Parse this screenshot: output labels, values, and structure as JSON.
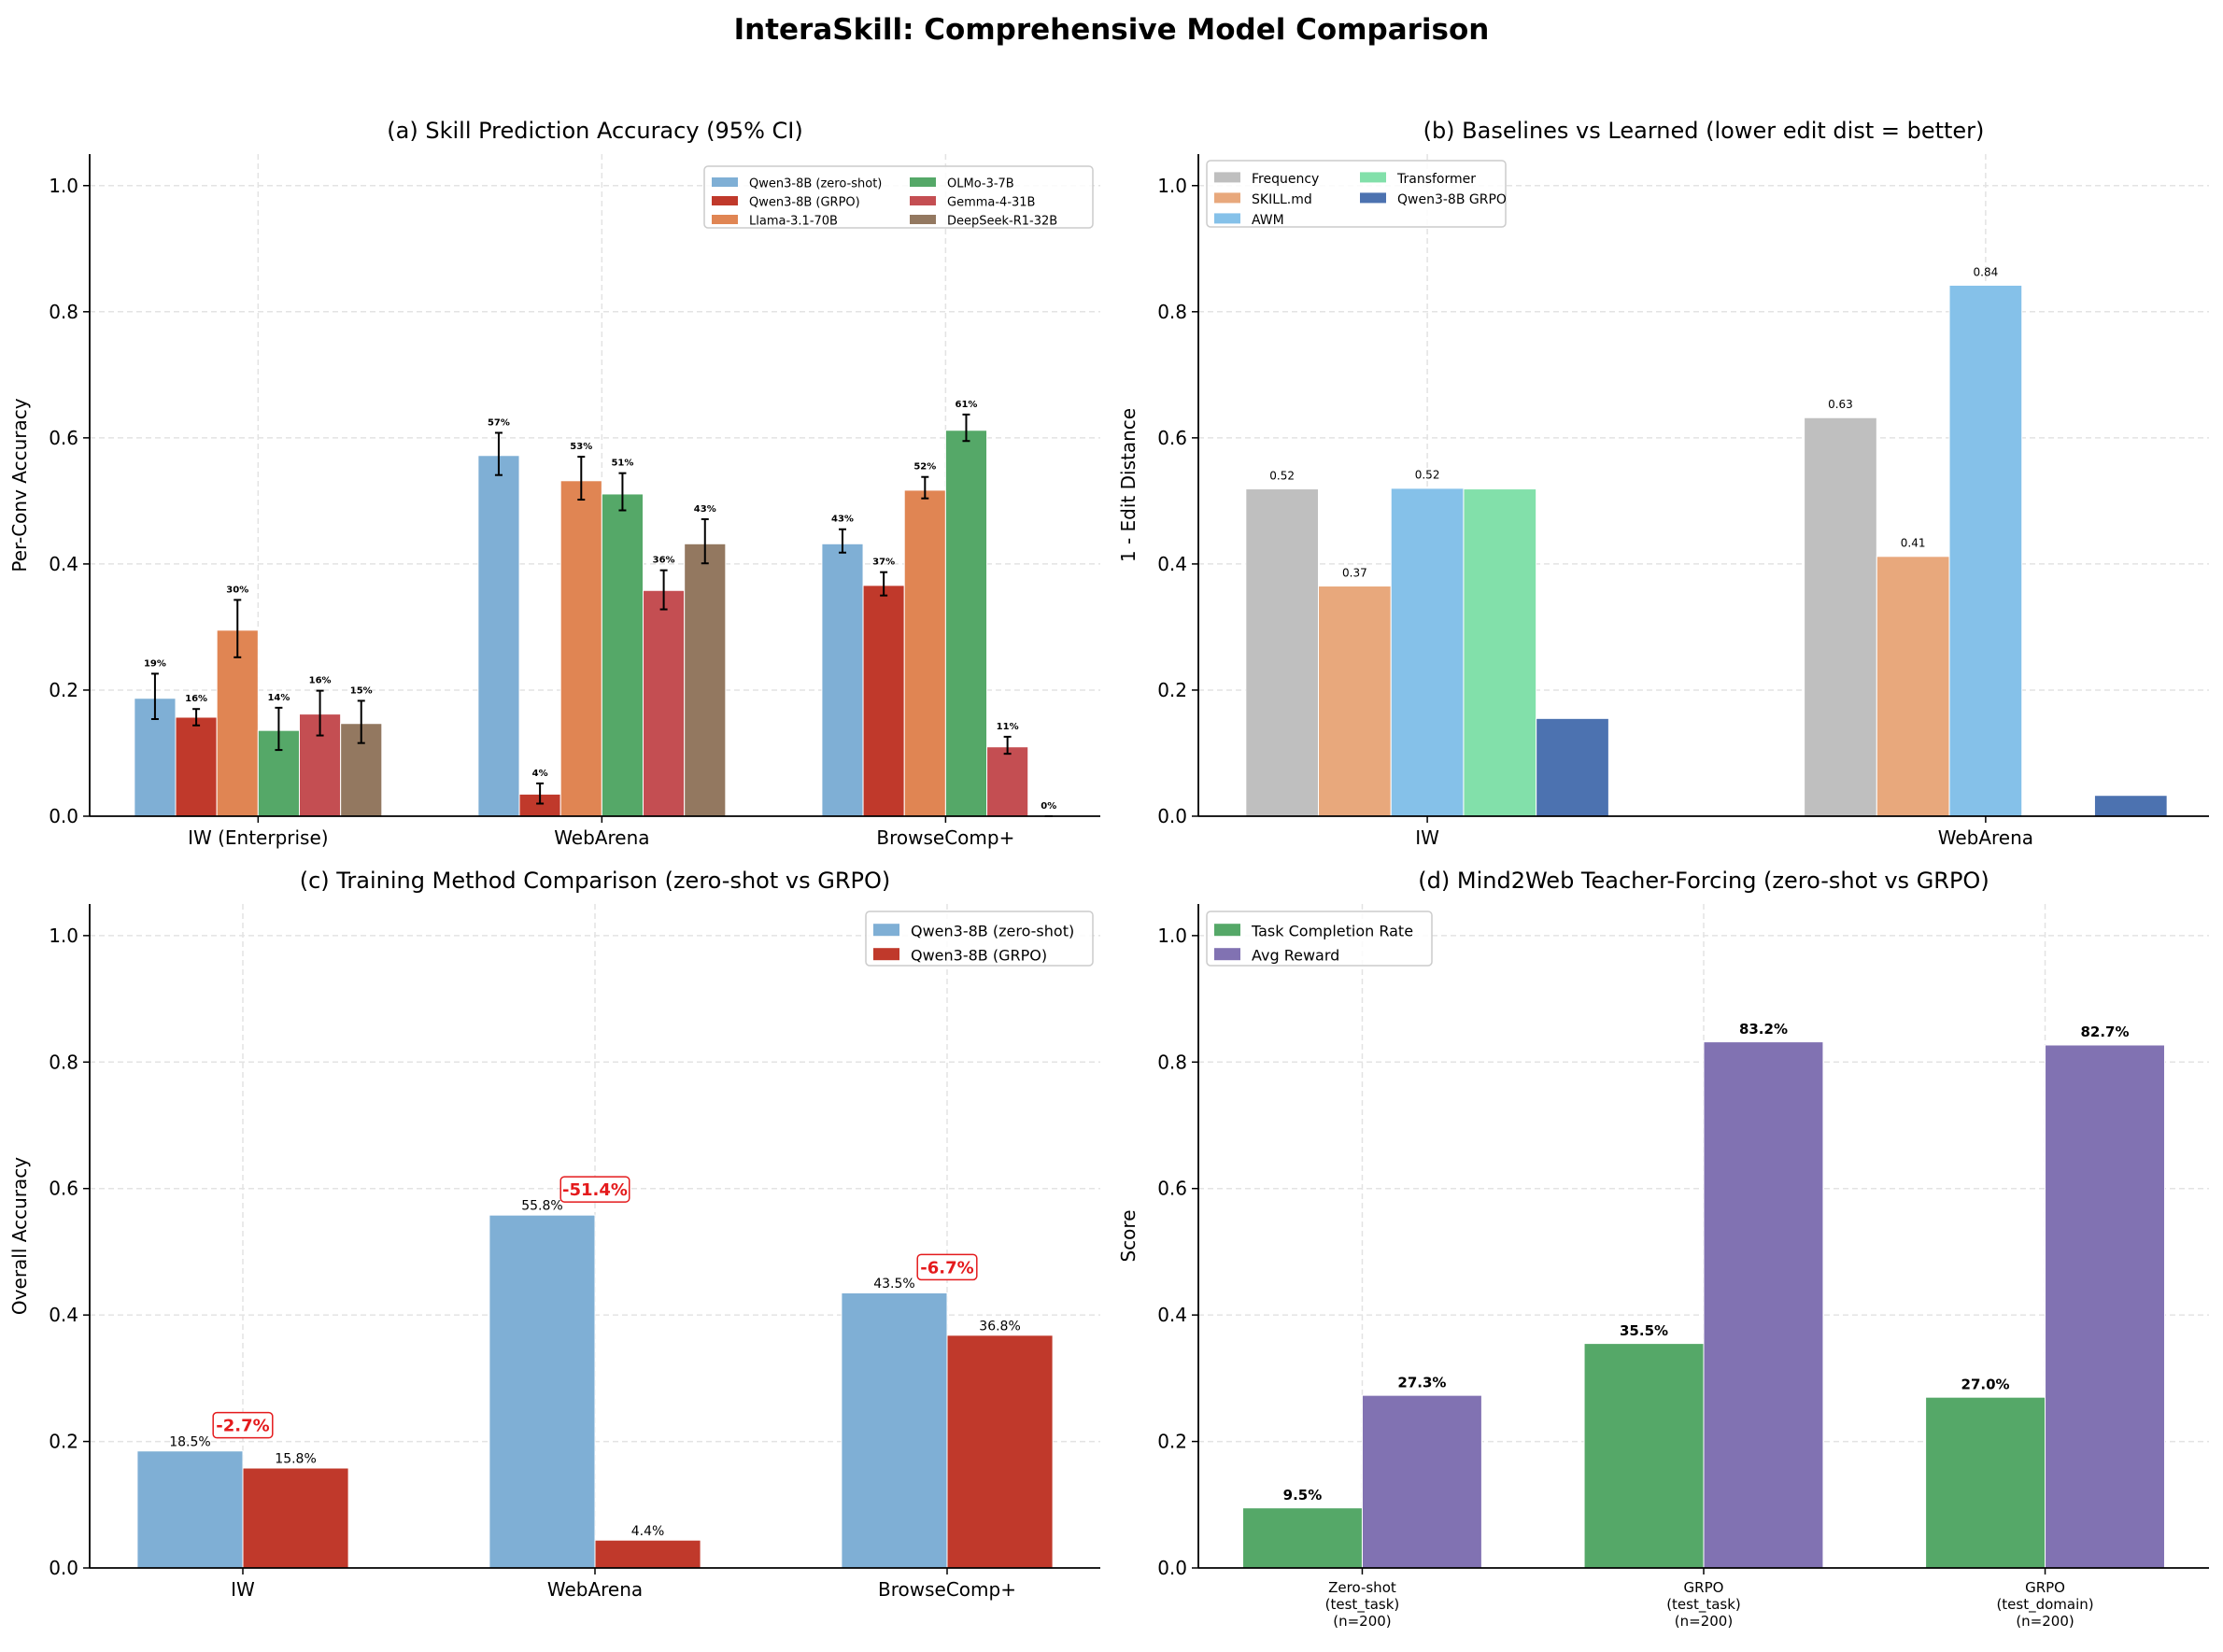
{
  "title": "InteraSkill: Comprehensive Model Comparison",
  "chart_data": [
    {
      "type": "bar",
      "title": "(a) Skill Prediction Accuracy (95% CI)",
      "ylabel": "Per-Conv Accuracy",
      "xlabel": "",
      "ylim": [
        0,
        1.05
      ],
      "yticks": [
        "0.0",
        "0.2",
        "0.4",
        "0.6",
        "0.8",
        "1.0"
      ],
      "grid": true,
      "legend": "top-right",
      "categories": [
        [
          "IW (Enterprise)"
        ],
        [
          "WebArena"
        ],
        [
          "BrowseComp+"
        ]
      ],
      "series": [
        {
          "name": "Qwen3-8B (zero-shot)",
          "color": "#7fafd5",
          "values": [
            0.187,
            0.572,
            0.432
          ],
          "ci": [
            [
              0.154,
              0.226
            ],
            [
              0.541,
              0.608
            ],
            [
              0.418,
              0.455
            ]
          ],
          "labels": [
            "19%",
            "57%",
            "43%"
          ]
        },
        {
          "name": "Qwen3-8B (GRPO)",
          "color": "#c0392b",
          "values": [
            0.157,
            0.035,
            0.366
          ],
          "ci": [
            [
              0.144,
              0.17
            ],
            [
              0.02,
              0.052
            ],
            [
              0.35,
              0.387
            ]
          ],
          "labels": [
            "16%",
            "4%",
            "37%"
          ]
        },
        {
          "name": "Llama-3.1-70B",
          "color": "#e08553",
          "values": [
            0.295,
            0.532,
            0.517
          ],
          "ci": [
            [
              0.252,
              0.343
            ],
            [
              0.502,
              0.57
            ],
            [
              0.504,
              0.538
            ]
          ],
          "labels": [
            "30%",
            "53%",
            "52%"
          ]
        },
        {
          "name": "OLMo-3-7B",
          "color": "#55a868",
          "values": [
            0.136,
            0.511,
            0.612
          ],
          "ci": [
            [
              0.105,
              0.172
            ],
            [
              0.485,
              0.544
            ],
            [
              0.595,
              0.637
            ]
          ],
          "labels": [
            "14%",
            "51%",
            "61%"
          ]
        },
        {
          "name": "Gemma-4-31B",
          "color": "#c44e52",
          "values": [
            0.162,
            0.358,
            0.11
          ],
          "ci": [
            [
              0.128,
              0.199
            ],
            [
              0.328,
              0.39
            ],
            [
              0.099,
              0.126
            ]
          ],
          "labels": [
            "16%",
            "36%",
            "11%"
          ]
        },
        {
          "name": "DeepSeek-R1-32B",
          "color": "#937860",
          "values": [
            0.147,
            0.432,
            0.0
          ],
          "ci": [
            [
              0.116,
              0.183
            ],
            [
              0.401,
              0.471
            ],
            [
              0.0,
              0.0
            ]
          ],
          "labels": [
            "15%",
            "43%",
            "0%"
          ]
        }
      ]
    },
    {
      "type": "bar",
      "title": "(b) Baselines vs Learned (lower edit dist = better)",
      "ylabel": "1 - Edit Distance",
      "xlabel": "",
      "ylim": [
        0,
        1.05
      ],
      "yticks": [
        "0.0",
        "0.2",
        "0.4",
        "0.6",
        "0.8",
        "1.0"
      ],
      "grid": true,
      "legend": "top-left",
      "categories": [
        [
          "IW"
        ],
        [
          "WebArena"
        ]
      ],
      "series": [
        {
          "name": "Frequency",
          "color": "#bfbfbf",
          "values": [
            0.519,
            0.632
          ],
          "labels": [
            "0.52",
            "0.63"
          ]
        },
        {
          "name": "SKILL.md",
          "color": "#e8a87c",
          "values": [
            0.365,
            0.412
          ],
          "labels": [
            "0.37",
            "0.41"
          ]
        },
        {
          "name": "AWM",
          "color": "#85c1e9",
          "values": [
            0.52,
            0.842
          ],
          "labels": [
            "0.52",
            "0.84"
          ]
        },
        {
          "name": "Transformer",
          "color": "#82e0aa",
          "values": [
            0.519,
            null
          ],
          "labels": [
            "",
            ""
          ]
        },
        {
          "name": "Qwen3-8B GRPO",
          "color": "#4c72b0",
          "values": [
            0.155,
            0.033
          ],
          "labels": [
            "",
            ""
          ]
        }
      ]
    },
    {
      "type": "bar",
      "title": "(c) Training Method Comparison (zero-shot vs GRPO)",
      "ylabel": "Overall Accuracy",
      "xlabel": "",
      "ylim": [
        0,
        1.05
      ],
      "yticks": [
        "0.0",
        "0.2",
        "0.4",
        "0.6",
        "0.8",
        "1.0"
      ],
      "grid": true,
      "legend": "top-right",
      "categories": [
        [
          "IW"
        ],
        [
          "WebArena"
        ],
        [
          "BrowseComp+"
        ]
      ],
      "series": [
        {
          "name": "Qwen3-8B (zero-shot)",
          "color": "#7fafd5",
          "values": [
            0.185,
            0.558,
            0.435
          ],
          "labels": [
            "18.5%",
            "55.8%",
            "43.5%"
          ]
        },
        {
          "name": "Qwen3-8B (GRPO)",
          "color": "#c0392b",
          "values": [
            0.158,
            0.044,
            0.368
          ],
          "labels": [
            "15.8%",
            "4.4%",
            "36.8%"
          ]
        }
      ],
      "annotations": [
        "-2.7%",
        "-51.4%",
        "-6.7%"
      ],
      "annotation_color": "#e41a1c"
    },
    {
      "type": "bar",
      "title": "(d) Mind2Web Teacher-Forcing (zero-shot vs GRPO)",
      "ylabel": "Score",
      "xlabel": "",
      "ylim": [
        0,
        1.05
      ],
      "yticks": [
        "0.0",
        "0.2",
        "0.4",
        "0.6",
        "0.8",
        "1.0"
      ],
      "grid": true,
      "legend": "top-left",
      "categories": [
        [
          "Zero-shot",
          "(test_task)",
          "(n=200)"
        ],
        [
          "GRPO",
          "(test_task)",
          "(n=200)"
        ],
        [
          "GRPO",
          "(test_domain)",
          "(n=200)"
        ]
      ],
      "series": [
        {
          "name": "Task Completion Rate",
          "color": "#55a868",
          "values": [
            0.095,
            0.355,
            0.27
          ],
          "labels": [
            "9.5%",
            "35.5%",
            "27.0%"
          ]
        },
        {
          "name": "Avg Reward",
          "color": "#8172b2",
          "values": [
            0.273,
            0.832,
            0.827
          ],
          "labels": [
            "27.3%",
            "83.2%",
            "82.7%"
          ]
        }
      ]
    }
  ]
}
